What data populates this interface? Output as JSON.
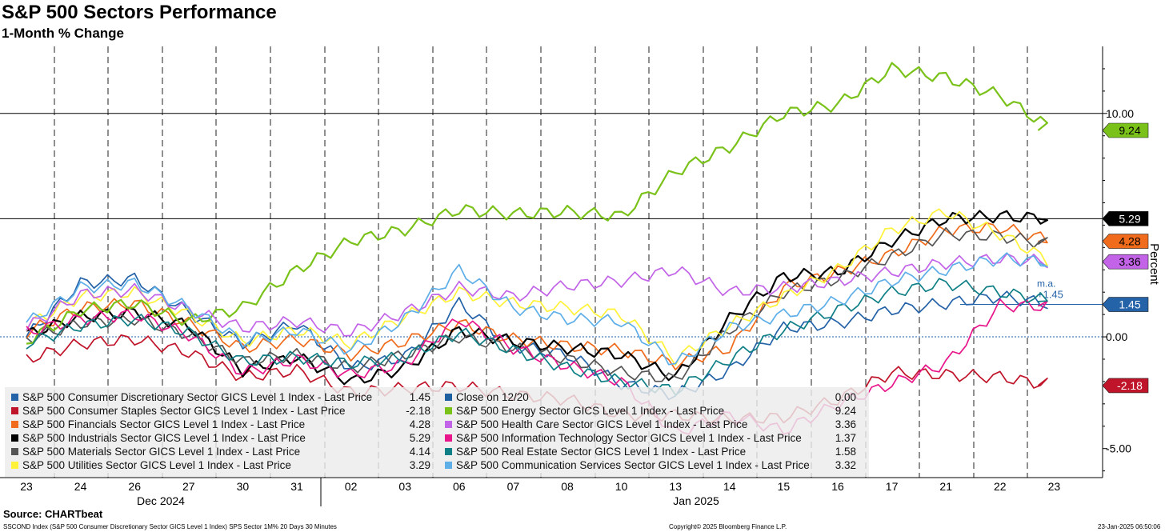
{
  "chart_data": {
    "type": "line",
    "title": "S&P 500 Sectors Performance",
    "subtitle": "1-Month % Change",
    "ylabel": "Percent",
    "ylim": [
      -6.3,
      13.0
    ],
    "yticks": [
      10,
      0,
      -5
    ],
    "ytick_labels": [
      "10.00",
      "0.00",
      "-5.00"
    ],
    "x_labels": [
      "23",
      "24",
      "26",
      "27",
      "30",
      "31",
      "02",
      "03",
      "06",
      "07",
      "08",
      "10",
      "13",
      "14",
      "15",
      "16",
      "17",
      "21",
      "22",
      "23"
    ],
    "month_labels": [
      "Dec 2024",
      "Jan 2025"
    ],
    "reference_lines": [
      10,
      5.29
    ],
    "moving_average": {
      "label": "m.a.",
      "value_label": "+1.45",
      "value": 1.45
    },
    "series": [
      {
        "name": "S&P 500 Consumer Discretionary Sector GICS Level 1 Index - Last Price",
        "value_label": "1.45",
        "color": "#2563a8",
        "values": [
          0.0,
          2.4,
          2.6,
          1.1,
          -0.3,
          0.6,
          -1.4,
          -0.9,
          1.5,
          -0.4,
          -0.8,
          -2.1,
          -2.6,
          -1.5,
          0.4,
          0.6,
          1.2,
          1.5,
          1.8,
          1.45
        ]
      },
      {
        "name": "S&P 500 Consumer Staples Sector GICS Level 1 Index - Last Price",
        "value_label": "-2.18",
        "color": "#c0142a",
        "values": [
          -1.0,
          -0.3,
          -0.1,
          -0.7,
          -1.8,
          -1.5,
          -2.5,
          -2.3,
          -2.2,
          -2.6,
          -2.8,
          -3.5,
          -3.5,
          -3.7,
          -3.6,
          -2.8,
          -1.6,
          -1.7,
          -1.8,
          -2.18
        ]
      },
      {
        "name": "S&P 500 Financials Sector GICS Level 1 Index - Last Price",
        "value_label": "4.28",
        "color": "#f06b1b",
        "values": [
          0.2,
          1.3,
          1.5,
          0.6,
          -0.5,
          -0.1,
          -0.8,
          -0.2,
          0.6,
          -0.1,
          -0.4,
          -0.6,
          -1.2,
          -0.5,
          2.2,
          2.9,
          3.7,
          4.8,
          4.9,
          4.28
        ]
      },
      {
        "name": "S&P 500 Industrials Sector GICS Level 1 Index - Last Price",
        "value_label": "5.29",
        "color": "#000000",
        "values": [
          0.1,
          0.9,
          1.1,
          0.5,
          -1.5,
          -0.9,
          -2.0,
          -1.4,
          0.3,
          -0.2,
          -0.5,
          -0.8,
          -1.8,
          0.8,
          2.7,
          2.9,
          4.3,
          5.3,
          5.4,
          5.29
        ]
      },
      {
        "name": "S&P 500 Materials Sector GICS Level 1 Index - Last Price",
        "value_label": "4.14",
        "color": "#555555",
        "values": [
          -0.1,
          0.6,
          0.8,
          0.1,
          -1.1,
          -0.8,
          -1.4,
          -0.8,
          0.0,
          -0.5,
          -1.0,
          -1.6,
          -1.9,
          0.3,
          2.0,
          2.6,
          3.6,
          4.6,
          4.5,
          4.14
        ]
      },
      {
        "name": "S&P 500 Utilities Sector GICS Level 1 Index - Last Price",
        "value_label": "3.29",
        "color": "#fff238",
        "values": [
          0.5,
          1.8,
          2.0,
          1.0,
          -0.2,
          0.3,
          -0.3,
          0.9,
          2.0,
          1.5,
          1.3,
          1.0,
          -1.0,
          0.5,
          1.8,
          3.0,
          4.8,
          5.6,
          4.6,
          3.29
        ]
      },
      {
        "name": "Close on 12/20",
        "value_label": "0.00",
        "color": "#1e5fa0",
        "values": [
          0,
          0,
          0,
          0,
          0,
          0,
          0,
          0,
          0,
          0,
          0,
          0,
          0,
          0,
          0,
          0,
          0,
          0,
          0,
          0
        ]
      },
      {
        "name": "S&P 500 Energy Sector GICS Level 1 Index - Last Price",
        "value_label": "9.24",
        "color": "#7ac21a",
        "values": [
          -0.2,
          1.2,
          1.5,
          0.7,
          1.3,
          3.0,
          4.3,
          4.8,
          5.7,
          5.5,
          5.6,
          5.4,
          7.4,
          8.5,
          10.0,
          10.4,
          12.0,
          11.6,
          10.8,
          9.24
        ]
      },
      {
        "name": "S&P 500 Health Care Sector GICS Level 1 Index - Last Price",
        "value_label": "3.36",
        "color": "#c263e8",
        "values": [
          0.4,
          1.9,
          2.1,
          1.2,
          0.4,
          0.7,
          0.2,
          1.1,
          2.2,
          1.8,
          2.3,
          2.5,
          3.0,
          2.0,
          2.2,
          2.5,
          2.9,
          3.3,
          3.5,
          3.36
        ]
      },
      {
        "name": "S&P 500 Information Technology Sector GICS Level 1 Index - Last Price",
        "value_label": "1.37",
        "color": "#e8168a",
        "values": [
          0.2,
          0.8,
          1.0,
          0.1,
          -1.6,
          -1.0,
          -1.7,
          -1.2,
          0.8,
          -0.5,
          -1.3,
          -2.0,
          -4.3,
          -3.5,
          -4.2,
          -3.0,
          -2.1,
          -1.2,
          1.4,
          1.37
        ]
      },
      {
        "name": "S&P 500 Real Estate Sector GICS Level 1 Index - Last Price",
        "value_label": "1.58",
        "color": "#0f7f86",
        "values": [
          -0.3,
          0.5,
          0.8,
          0.2,
          -1.1,
          -0.9,
          -1.2,
          -0.9,
          0.2,
          -0.6,
          -1.4,
          -2.0,
          -2.4,
          -1.0,
          0.3,
          1.2,
          2.0,
          2.4,
          2.0,
          1.58
        ]
      },
      {
        "name": "S&P 500 Communication Services Sector GICS Level 1 Index - Last Price",
        "value_label": "3.32",
        "color": "#5eaee8",
        "values": [
          0.6,
          2.2,
          2.4,
          1.3,
          -0.2,
          0.3,
          -0.6,
          0.8,
          3.0,
          1.3,
          0.8,
          0.7,
          -1.2,
          0.4,
          1.0,
          1.6,
          2.5,
          3.0,
          3.5,
          3.32
        ]
      }
    ],
    "right_labels": [
      {
        "value_label": "9.24",
        "value": 9.24,
        "color": "#7ac21a",
        "text_color": "#000000"
      },
      {
        "value_label": "5.29",
        "value": 5.29,
        "color": "#000000",
        "text_color": "#ffffff"
      },
      {
        "value_label": "4.28",
        "value": 4.28,
        "color": "#f06b1b",
        "text_color": "#000000"
      },
      {
        "value_label": "3.36",
        "value": 3.36,
        "color": "#c263e8",
        "text_color": "#000000"
      },
      {
        "value_label": "1.45",
        "value": 1.45,
        "color": "#2563a8",
        "text_color": "#ffffff"
      },
      {
        "value_label": "-2.18",
        "value": -2.18,
        "color": "#c0142a",
        "text_color": "#ffffff"
      }
    ]
  },
  "footer": {
    "source": "Source: CHARTbeat",
    "series_info": "SSCOND Index (S&P 500 Consumer Discretionary Sector GICS Level 1 Index) SPS Sector 1M% 20 Days 30 Minutes",
    "copyright": "Copyright© 2025 Bloomberg Finance L.P.",
    "timestamp": "23-Jan-2025 06:50:06"
  }
}
